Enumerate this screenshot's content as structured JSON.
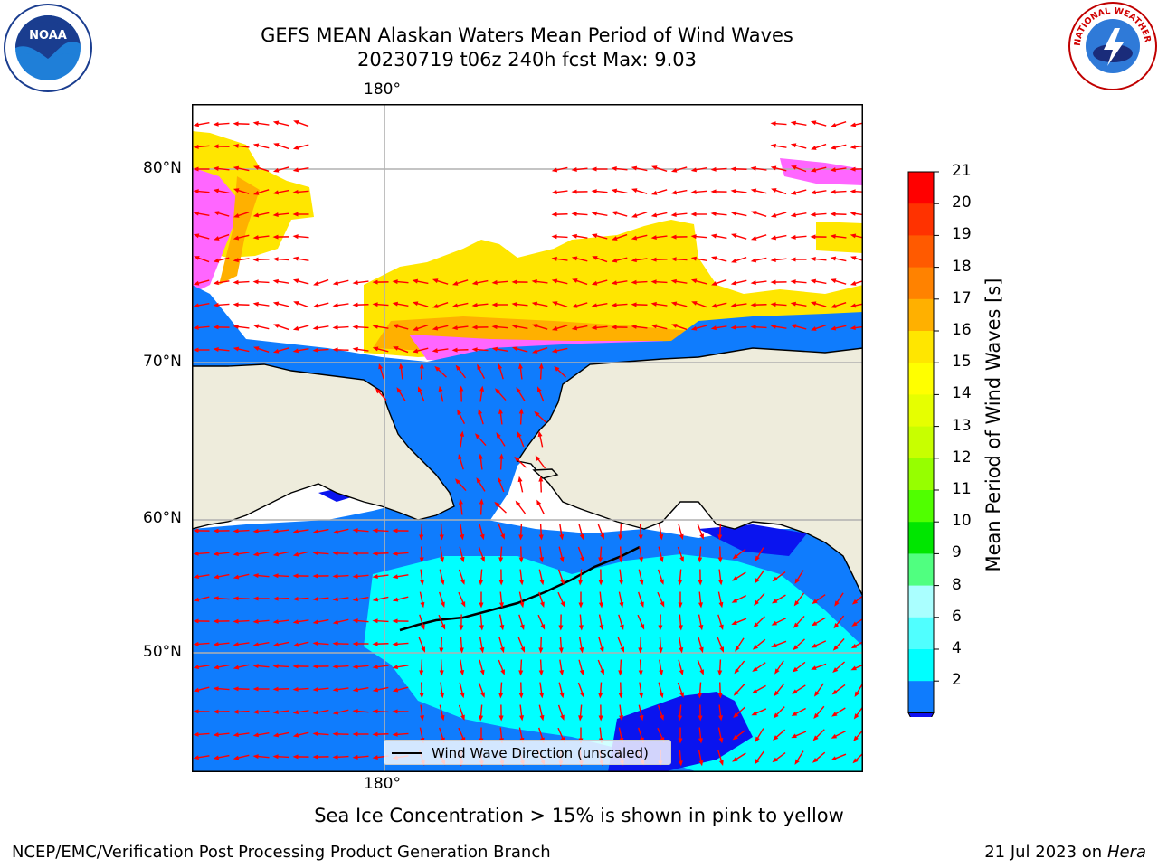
{
  "title": {
    "line1": "GEFS MEAN Alaskan Waters Mean Period of Wind Waves",
    "line2": "20230719 t06z 240h fcst   Max: 9.03"
  },
  "logos": {
    "noaa_text": "NOAA",
    "nws_text": "NATIONAL WEATHER SERVICE"
  },
  "map": {
    "lon_label_top": "180°",
    "lon_label_bottom": "180°",
    "lat_labels": [
      "80°N",
      "70°N",
      "60°N",
      "50°N"
    ],
    "legend_label": "Wind Wave Direction (unscaled)",
    "colors": {
      "land": "#eeecdc",
      "ocean_low": "#0f7cfd",
      "ocean_mid": "#00ffff",
      "ocean_deep": "#0a14ef",
      "arrows": "#ff0000",
      "ice_pink": "#ff66ff",
      "ice_orange": "#ffb000",
      "ice_yellow": "#ffe600",
      "grid": "#b0b0b0"
    }
  },
  "colorbar": {
    "title": "Mean Period of Wind Waves [s]",
    "ticks": [
      "21",
      "20",
      "19",
      "18",
      "17",
      "16",
      "15",
      "14",
      "13",
      "12",
      "11",
      "10",
      "9",
      "8",
      "6",
      "4",
      "2"
    ],
    "colors": [
      "#ff0000",
      "#ff3200",
      "#ff5a00",
      "#ff8200",
      "#ffb000",
      "#ffe600",
      "#ffff00",
      "#e6ff00",
      "#c8ff00",
      "#96ff00",
      "#50ff00",
      "#00e600",
      "#50ff80",
      "#aaffff",
      "#50ffff",
      "#00ffff",
      "#0f7cfd"
    ],
    "extend_color": "#1010f0"
  },
  "note": "Sea Ice Concentration > 15% is shown in pink to yellow",
  "footer": {
    "left": "NCEP/EMC/Verification Post Processing Product Generation Branch",
    "right_prefix": "21 Jul 2023 on ",
    "right_machine": "Hera"
  }
}
